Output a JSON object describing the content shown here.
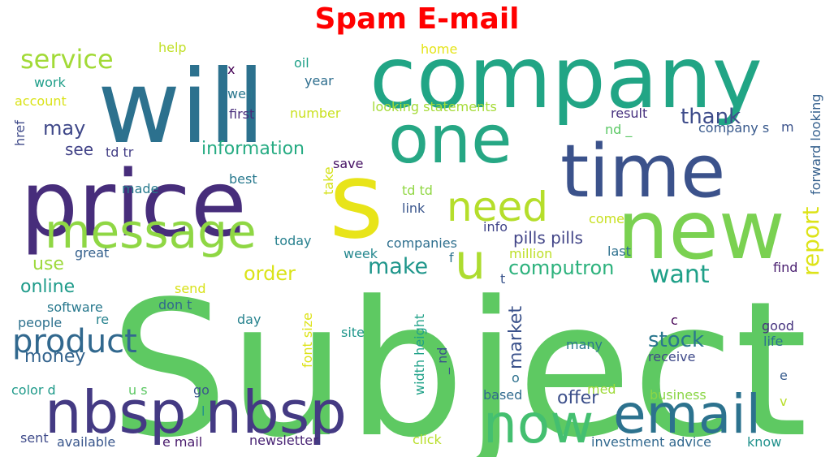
{
  "title": "Spam E-mail",
  "title_color": "#ff0000",
  "words": [
    {
      "text": "Subject",
      "color": "#5ec962"
    },
    {
      "text": "company",
      "color": "#21a585"
    },
    {
      "text": "will",
      "color": "#2c718e"
    },
    {
      "text": "price",
      "color": "#472d7b"
    },
    {
      "text": "one",
      "color": "#26a784"
    },
    {
      "text": "time",
      "color": "#3b528b"
    },
    {
      "text": "new",
      "color": "#7ad151"
    },
    {
      "text": "s",
      "color": "#e8e419"
    },
    {
      "text": "message",
      "color": "#8fd744"
    },
    {
      "text": "need",
      "color": "#b5de2b"
    },
    {
      "text": "nbsp nbsp",
      "color": "#443a83"
    },
    {
      "text": "email",
      "color": "#2c728e"
    },
    {
      "text": "now",
      "color": "#44bf70"
    },
    {
      "text": "u",
      "color": "#addc30"
    },
    {
      "text": "product",
      "color": "#31688e"
    },
    {
      "text": "service",
      "color": "#a2da37"
    },
    {
      "text": "information",
      "color": "#25ab82"
    },
    {
      "text": "make",
      "color": "#1f968b"
    },
    {
      "text": "want",
      "color": "#1fa088"
    },
    {
      "text": "thank",
      "color": "#3e4c8a"
    },
    {
      "text": "report",
      "color": "#dde318"
    },
    {
      "text": "computron",
      "color": "#2db27d"
    },
    {
      "text": "online",
      "color": "#1e9b8a"
    },
    {
      "text": "money",
      "color": "#33638d"
    },
    {
      "text": "may",
      "color": "#3f4889"
    },
    {
      "text": "order",
      "color": "#dae319"
    },
    {
      "text": "use",
      "color": "#9dd93b"
    },
    {
      "text": "stock",
      "color": "#2a778e"
    },
    {
      "text": "market",
      "color": "#3b528b"
    },
    {
      "text": "offer",
      "color": "#3c4f8a"
    },
    {
      "text": "see",
      "color": "#414287"
    },
    {
      "text": "pills pills",
      "color": "#414487"
    },
    {
      "text": "million",
      "color": "#bddf26"
    },
    {
      "text": "companies",
      "color": "#2e6f8e"
    },
    {
      "text": "looking statements",
      "color": "#a5db36"
    },
    {
      "text": "forward looking",
      "color": "#35608d"
    },
    {
      "text": "company s",
      "color": "#38598c"
    },
    {
      "text": "result",
      "color": "#46307e"
    },
    {
      "text": "nd _",
      "color": "#5ac864"
    },
    {
      "text": "td tr",
      "color": "#433e85"
    },
    {
      "text": "td td",
      "color": "#90d743"
    },
    {
      "text": "link",
      "color": "#39558c"
    },
    {
      "text": "info",
      "color": "#404588"
    },
    {
      "text": "come",
      "color": "#c8e020"
    },
    {
      "text": "last",
      "color": "#2d708e"
    },
    {
      "text": "find",
      "color": "#481d6f"
    },
    {
      "text": "save",
      "color": "#471365"
    },
    {
      "text": "take",
      "color": "#d5e21a"
    },
    {
      "text": "best",
      "color": "#29798e"
    },
    {
      "text": "made",
      "color": "#297b8e"
    },
    {
      "text": "today",
      "color": "#27808e"
    },
    {
      "text": "week",
      "color": "#24878e"
    },
    {
      "text": "great",
      "color": "#34608d"
    },
    {
      "text": "send",
      "color": "#d8e219"
    },
    {
      "text": "don t",
      "color": "#31688e"
    },
    {
      "text": "software",
      "color": "#29798e"
    },
    {
      "text": "re",
      "color": "#26828e"
    },
    {
      "text": "people",
      "color": "#2d718e"
    },
    {
      "text": "day",
      "color": "#26828e"
    },
    {
      "text": "site",
      "color": "#1f968b"
    },
    {
      "text": "width height",
      "color": "#1fa188"
    },
    {
      "text": "font size",
      "color": "#dde318"
    },
    {
      "text": "_ nd",
      "color": "#3b528b"
    },
    {
      "text": "many",
      "color": "#2a788e"
    },
    {
      "text": "receive",
      "color": "#3e4989"
    },
    {
      "text": "good",
      "color": "#46337f"
    },
    {
      "text": "life",
      "color": "#2c728e"
    },
    {
      "text": "c",
      "color": "#440154"
    },
    {
      "text": "e",
      "color": "#375b8d"
    },
    {
      "text": "v",
      "color": "#b8de29"
    },
    {
      "text": "business",
      "color": "#8bd646"
    },
    {
      "text": "med",
      "color": "#9fda3a"
    },
    {
      "text": "based",
      "color": "#306a8e"
    },
    {
      "text": "o",
      "color": "#2d718e"
    },
    {
      "text": "color d",
      "color": "#1f9a8a"
    },
    {
      "text": "u s",
      "color": "#5cc863"
    },
    {
      "text": "go",
      "color": "#39558c"
    },
    {
      "text": "l",
      "color": "#21918c"
    },
    {
      "text": "sent",
      "color": "#3e4a89"
    },
    {
      "text": "available",
      "color": "#39568c"
    },
    {
      "text": "e mail",
      "color": "#481a6c"
    },
    {
      "text": "newsletter",
      "color": "#482374"
    },
    {
      "text": "click",
      "color": "#b8de29"
    },
    {
      "text": "investment advice",
      "color": "#31688e"
    },
    {
      "text": "know",
      "color": "#21918c"
    },
    {
      "text": "help",
      "color": "#c0df25"
    },
    {
      "text": "oil",
      "color": "#1fa088"
    },
    {
      "text": "x",
      "color": "#440154"
    },
    {
      "text": "home",
      "color": "#e5e419"
    },
    {
      "text": "year",
      "color": "#2e6e8e"
    },
    {
      "text": "well",
      "color": "#2a778e"
    },
    {
      "text": "first",
      "color": "#472c7a"
    },
    {
      "text": "number",
      "color": "#cae11f"
    },
    {
      "text": "work",
      "color": "#1f9e89"
    },
    {
      "text": "account",
      "color": "#dae319"
    },
    {
      "text": "href",
      "color": "#3e4989"
    },
    {
      "text": "f",
      "color": "#2c728e"
    },
    {
      "text": "t",
      "color": "#3a548c"
    },
    {
      "text": "m",
      "color": "#3b528b"
    }
  ]
}
